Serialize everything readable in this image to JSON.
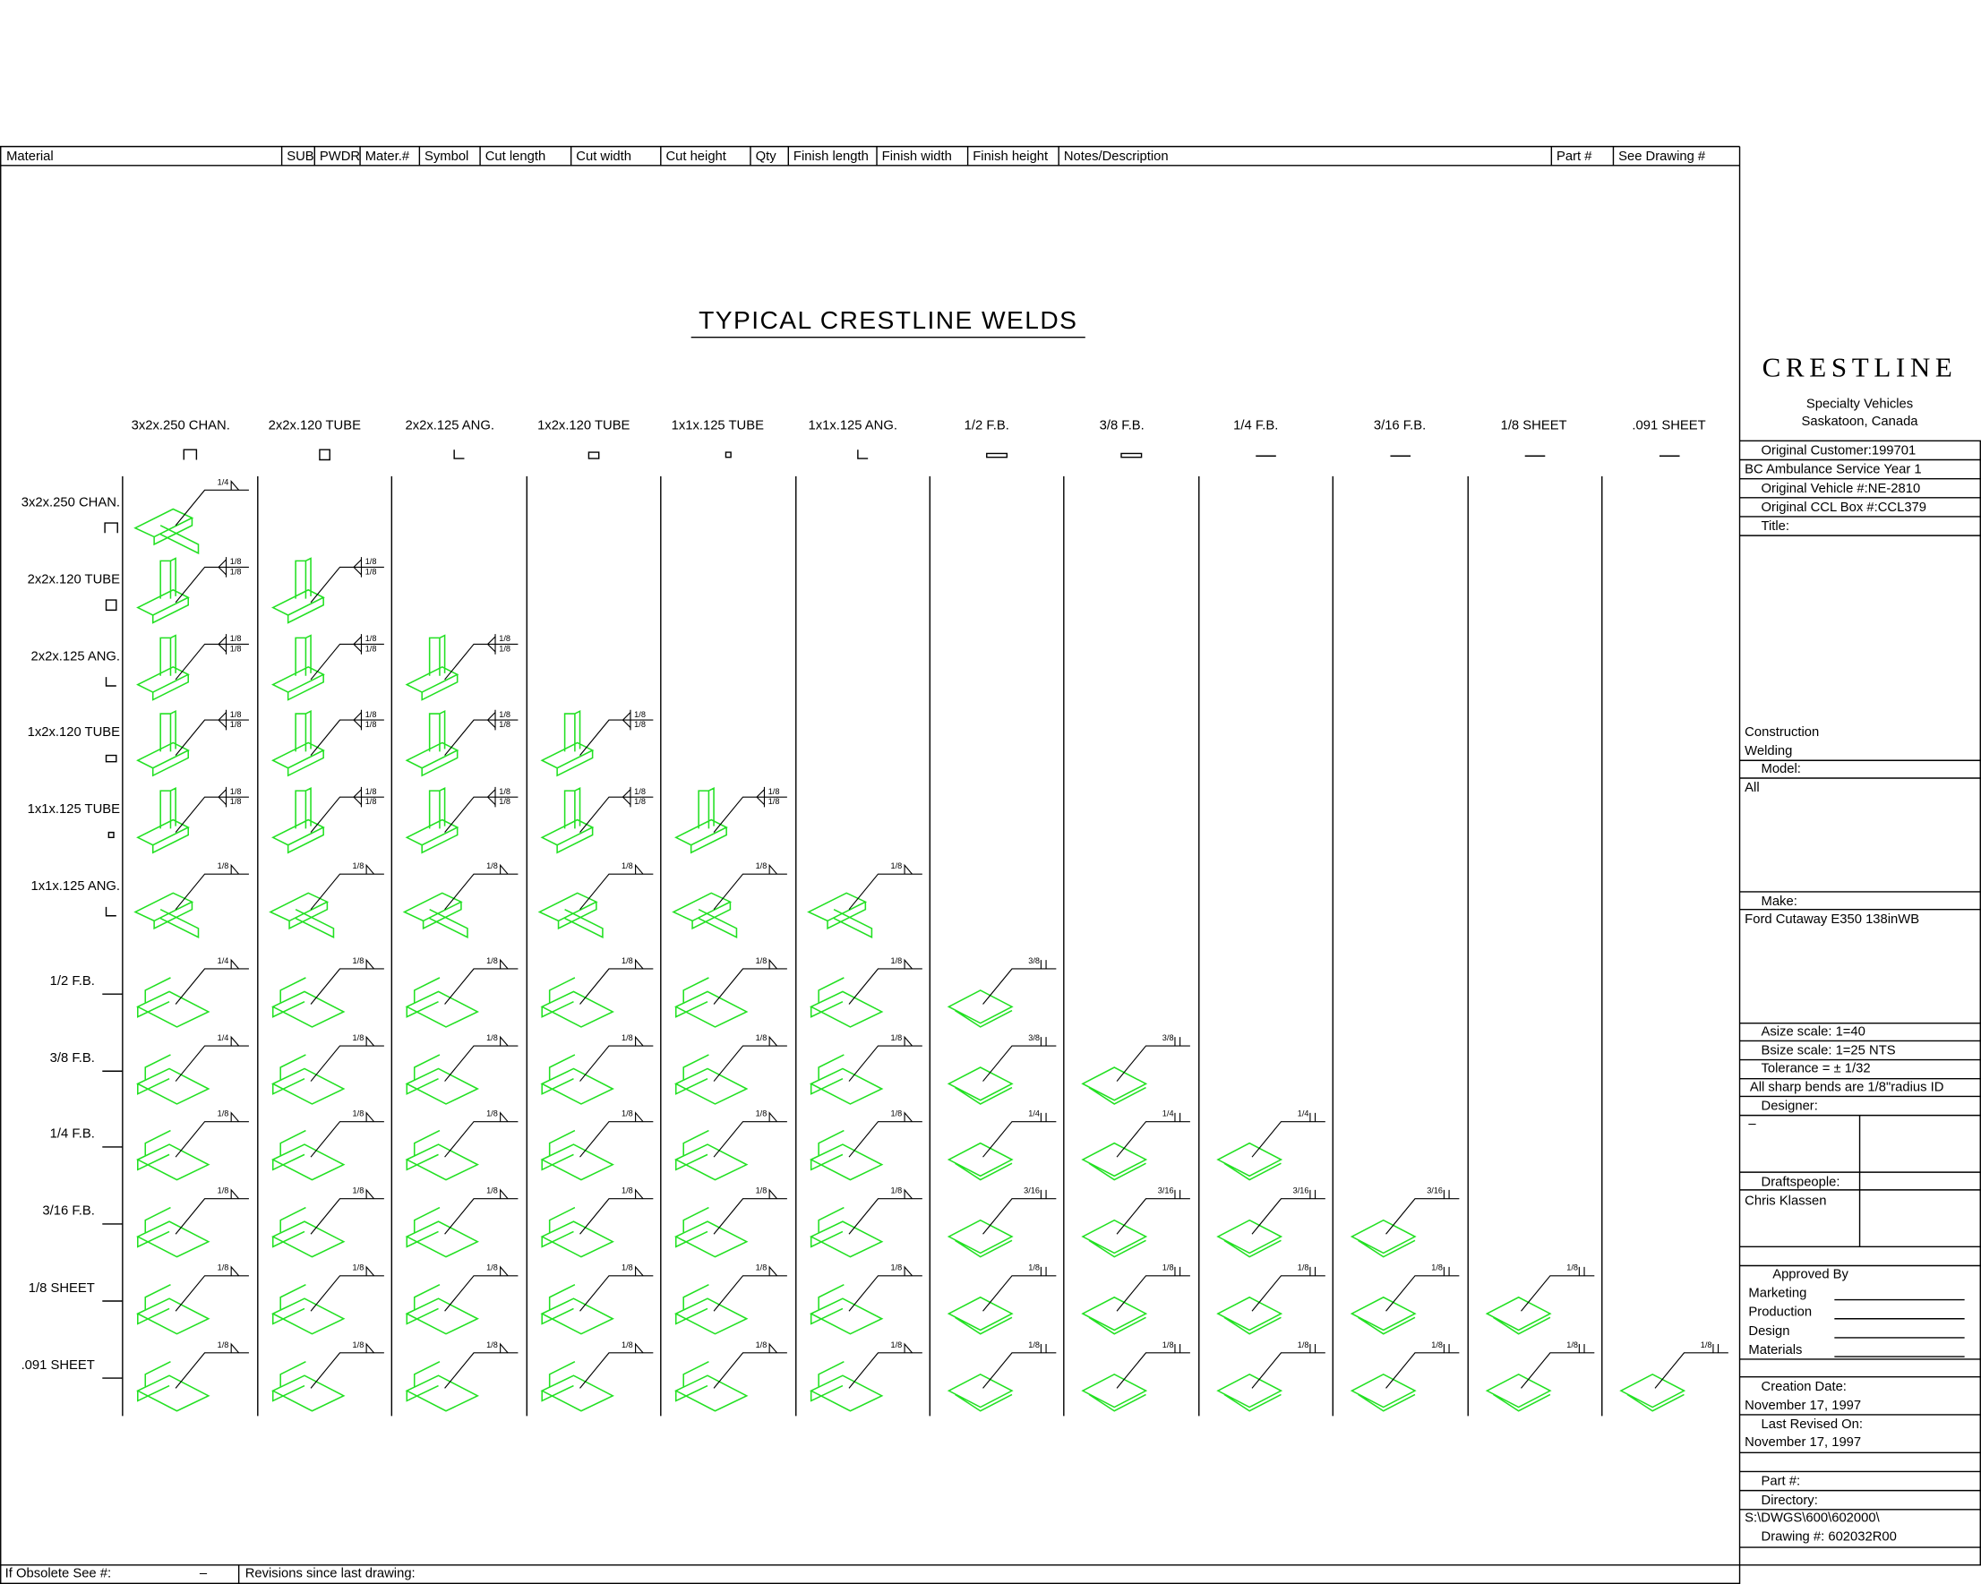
{
  "header": {
    "columns": [
      "Material",
      "SUB",
      "PWDR",
      "Mater.#",
      "Symbol",
      "Cut length",
      "Cut width",
      "Cut height",
      "Qty",
      "Finish length",
      "Finish width",
      "Finish height",
      "Notes/Description",
      "Part #",
      "See Drawing #"
    ]
  },
  "title": "TYPICAL CRESTLINE WELDS",
  "columns": [
    "3x2x.250 CHAN.",
    "2x2x.120 TUBE",
    "2x2x.125 ANG.",
    "1x2x.120 TUBE",
    "1x1x.125 TUBE",
    "1x1x.125 ANG.",
    "1/2 F.B.",
    "3/8 F.B.",
    "1/4 F.B.",
    "3/16 F.B.",
    "1/8 SHEET",
    ".091 SHEET"
  ],
  "rows": [
    {
      "label": "3x2x.250 CHAN.",
      "welds": [
        "1/4"
      ]
    },
    {
      "label": "2x2x.120 TUBE",
      "welds": [
        [
          "1/8",
          "1/8"
        ],
        [
          "1/8",
          "1/8"
        ]
      ]
    },
    {
      "label": "2x2x.125 ANG.",
      "welds": [
        [
          "1/8",
          "1/8"
        ],
        [
          "1/8",
          "1/8"
        ],
        [
          "1/8",
          "1/8"
        ]
      ]
    },
    {
      "label": "1x2x.120 TUBE",
      "welds": [
        [
          "1/8",
          "1/8"
        ],
        [
          "1/8",
          "1/8"
        ],
        [
          "1/8",
          "1/8"
        ],
        [
          "1/8",
          "1/8"
        ]
      ]
    },
    {
      "label": "1x1x.125 TUBE",
      "welds": [
        [
          "1/8",
          "1/8"
        ],
        [
          "1/8",
          "1/8"
        ],
        [
          "1/8",
          "1/8"
        ],
        [
          "1/8",
          "1/8"
        ],
        [
          "1/8",
          "1/8"
        ]
      ]
    },
    {
      "label": "1x1x.125 ANG.",
      "welds": [
        "1/8",
        "1/8",
        "1/8",
        "1/8",
        "1/8",
        "1/8"
      ]
    },
    {
      "label": "1/2 F.B.",
      "welds": [
        "1/4",
        "1/8",
        "1/8",
        "1/8",
        "1/8",
        "1/8",
        "3/8"
      ]
    },
    {
      "label": "3/8 F.B.",
      "welds": [
        "1/4",
        "1/8",
        "1/8",
        "1/8",
        "1/8",
        "1/8",
        "3/8",
        "3/8"
      ]
    },
    {
      "label": "1/4 F.B.",
      "welds": [
        "1/8",
        "1/8",
        "1/8",
        "1/8",
        "1/8",
        "1/8",
        "1/4",
        "1/4",
        "1/4"
      ]
    },
    {
      "label": "3/16 F.B.",
      "welds": [
        "1/8",
        "1/8",
        "1/8",
        "1/8",
        "1/8",
        "1/8",
        "3/16",
        "3/16",
        "3/16",
        "3/16"
      ]
    },
    {
      "label": "1/8 SHEET",
      "welds": [
        "1/8",
        "1/8",
        "1/8",
        "1/8",
        "1/8",
        "1/8",
        "1/8",
        "1/8",
        "1/8",
        "1/8",
        "1/8"
      ]
    },
    {
      "label": ".091 SHEET",
      "welds": [
        "1/8",
        "1/8",
        "1/8",
        "1/8",
        "1/8",
        "1/8",
        "1/8",
        "1/8",
        "1/8",
        "1/8",
        "1/8",
        "1/8"
      ]
    }
  ],
  "title_block": {
    "logo": "CRESTLINE",
    "lines": [
      "Specialty Vehicles",
      "Saskatoon, Canada",
      "Original Customer:199701",
      "BC Ambulance Service Year 1",
      "Original Vehicle #:NE-2810",
      "Original CCL Box #:CCL379",
      "Title:",
      "Construction",
      "Welding",
      "Model:",
      "All",
      "Make:",
      "Ford Cutaway E350 138inWB",
      "Asize scale:  1=40",
      "Bsize scale:  1=25 NTS",
      "Tolerance = ± 1/32",
      "All sharp bends are 1/8\"radius ID",
      "Designer:",
      "–",
      "Draftspeople:",
      "Chris Klassen",
      "Approved By",
      "Marketing",
      "Production",
      "Design",
      "Materials",
      "Creation Date:",
      "November 17, 1997",
      "Last Revised On:",
      "November 17, 1997",
      "Part #:",
      "Directory:",
      "S:\\DWGS\\600\\602000\\",
      "Drawing #: 602032R00"
    ]
  },
  "footer": {
    "obsolete": "If Obsolete See #:",
    "obsolete_value": "–",
    "revisions": "Revisions since last drawing:"
  }
}
